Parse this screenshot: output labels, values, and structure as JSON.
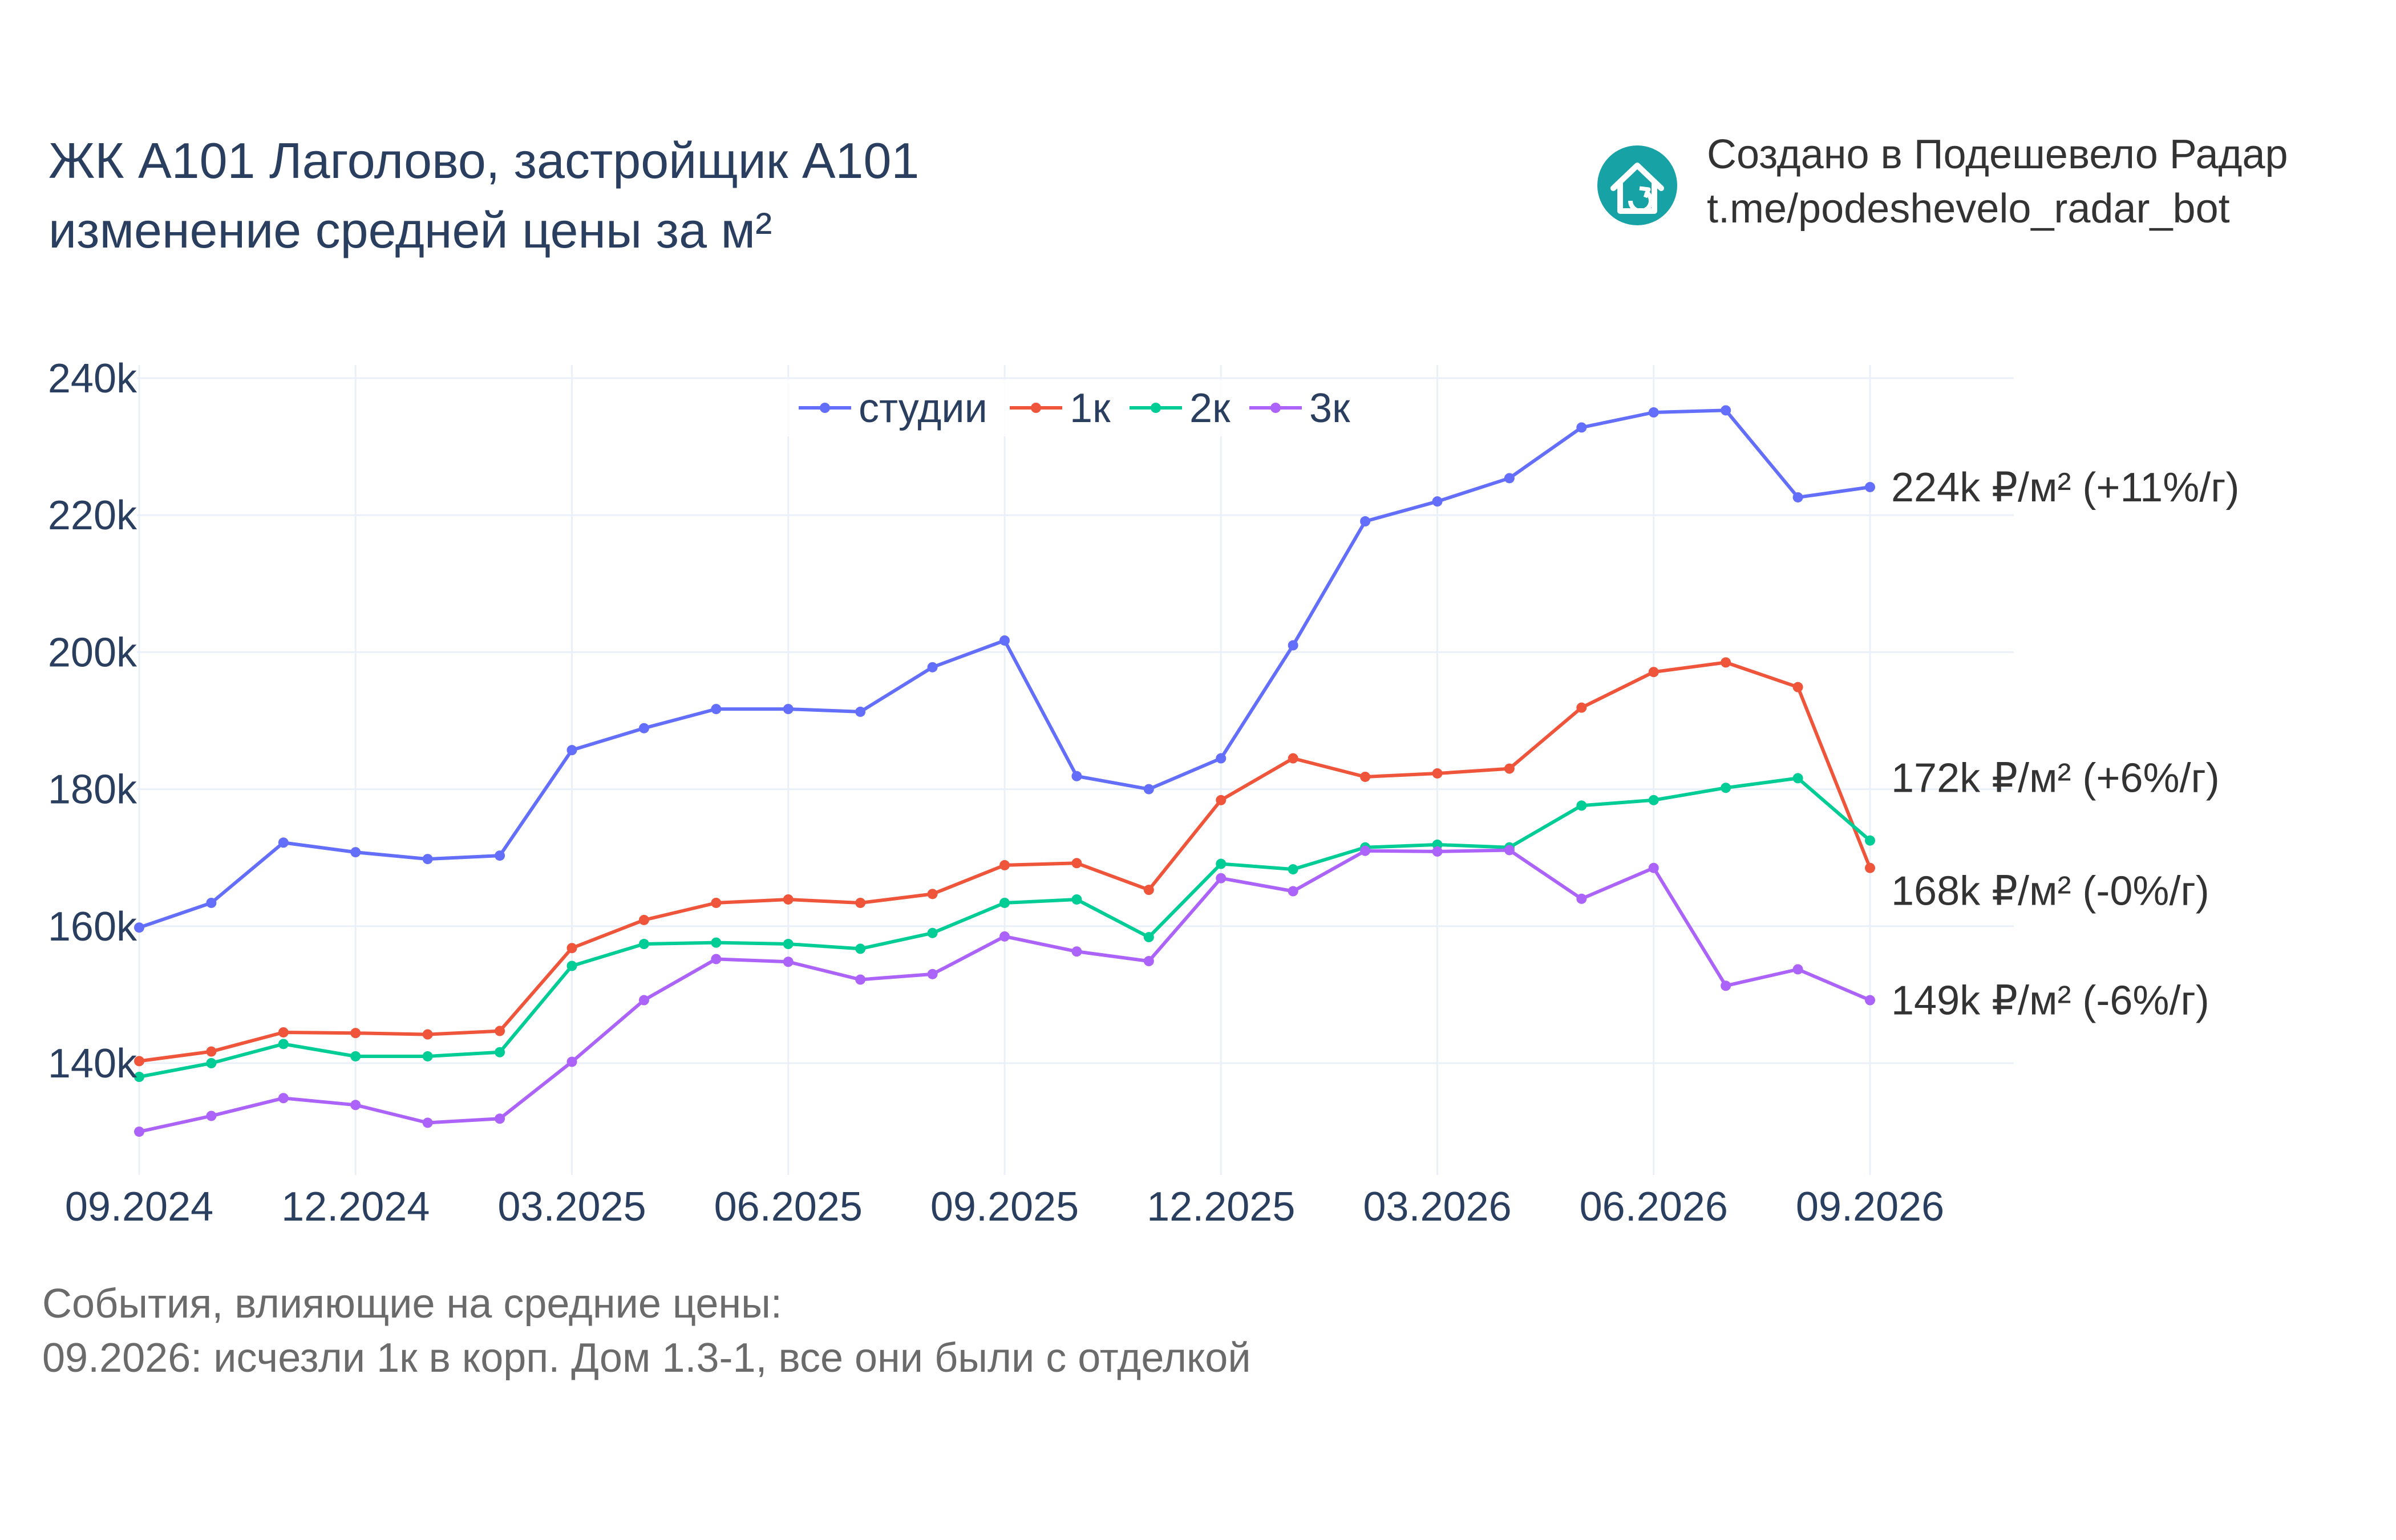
{
  "title": {
    "line1": "ЖК А101 Лаголово, застройщик А101",
    "line2": "изменение средней цены за м²"
  },
  "brand": {
    "line1": "Создано в Подешевело Радар",
    "line2": "t.me/podeshevelo_radar_bot",
    "logo_icon": "house-arrow-icon",
    "logo_color": "#17a2a6"
  },
  "events": {
    "heading": "События, влияющие на средние цены:",
    "items": [
      "09.2026: исчезли 1к в корп. Дом 1.3-1, все они были с отделкой"
    ]
  },
  "chart_data": {
    "type": "line",
    "x": [
      "2024-09",
      "2024-10",
      "2024-11",
      "2024-12",
      "2025-01",
      "2025-02",
      "2025-03",
      "2025-04",
      "2025-05",
      "2025-06",
      "2025-07",
      "2025-08",
      "2025-09",
      "2025-10",
      "2025-11",
      "2025-12",
      "2026-01",
      "2026-02",
      "2026-03",
      "2026-04",
      "2026-05",
      "2026-06",
      "2026-07",
      "2026-08",
      "2026-09"
    ],
    "x_ticks": [
      "09.2024",
      "12.2024",
      "03.2025",
      "06.2025",
      "09.2025",
      "12.2025",
      "03.2026",
      "06.2026",
      "09.2026"
    ],
    "y_ticks": [
      "140k",
      "160k",
      "180k",
      "200k",
      "220k",
      "240k"
    ],
    "ylim": [
      130000,
      240000
    ],
    "grid": true,
    "legend_position": "top-center",
    "series": [
      {
        "name": "студии",
        "color": "#636efa",
        "values": [
          159800,
          163400,
          172200,
          170800,
          169800,
          170300,
          185700,
          188900,
          191700,
          191700,
          191300,
          197800,
          201700,
          181900,
          180000,
          184500,
          201000,
          219100,
          222000,
          225400,
          232800,
          235000,
          235300,
          222600,
          224100
        ],
        "end_label": "224k ₽/м² (+11%/г)"
      },
      {
        "name": "1к",
        "color": "#ef553b",
        "values": [
          140300,
          141700,
          144500,
          144400,
          144200,
          144700,
          156800,
          160900,
          163400,
          163900,
          163400,
          164700,
          168900,
          169200,
          165300,
          178400,
          184500,
          181800,
          182300,
          183000,
          191900,
          197100,
          198500,
          194900,
          168500
        ],
        "end_label": "168k ₽/м² (-0%/г)"
      },
      {
        "name": "2к",
        "color": "#00cc96",
        "values": [
          138000,
          140000,
          142800,
          141000,
          141000,
          141600,
          154200,
          157400,
          157600,
          157400,
          156700,
          159000,
          163400,
          163900,
          158400,
          169100,
          168300,
          171500,
          171900,
          171500,
          177600,
          178400,
          180200,
          181600,
          172500
        ],
        "end_label": "172k ₽/м² (+6%/г)"
      },
      {
        "name": "3к",
        "color": "#ab63fa",
        "values": [
          130000,
          132300,
          134900,
          133900,
          131300,
          131900,
          140200,
          149200,
          155200,
          154800,
          152200,
          153000,
          158500,
          156300,
          154900,
          167000,
          165100,
          171000,
          170900,
          171100,
          164000,
          168500,
          151300,
          153700,
          149200
        ],
        "end_label": "149k ₽/м² (-6%/г)"
      }
    ]
  }
}
